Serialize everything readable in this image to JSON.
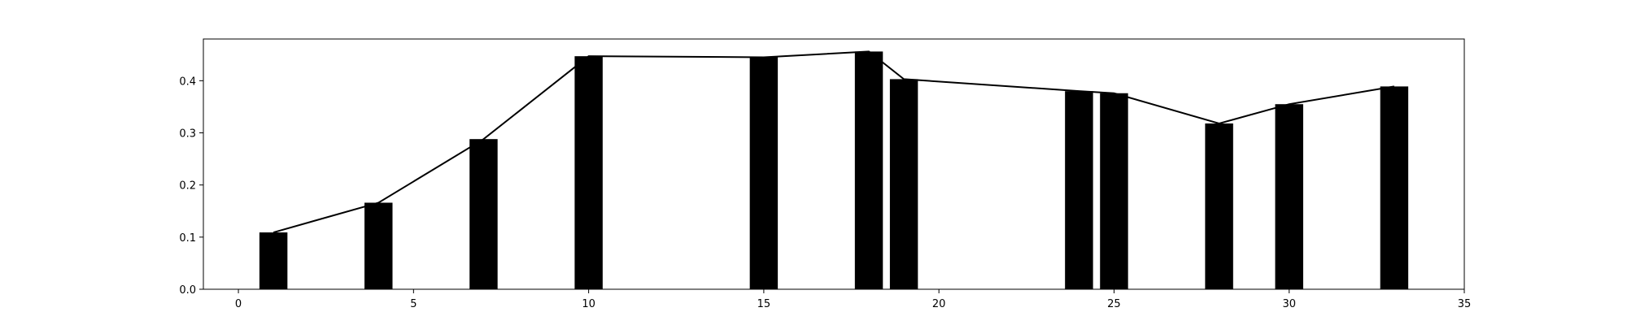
{
  "chart_data": {
    "type": "bar",
    "x": [
      1,
      4,
      7,
      10,
      15,
      18,
      19,
      24,
      25,
      28,
      30,
      33
    ],
    "values": [
      0.109,
      0.166,
      0.288,
      0.447,
      0.445,
      0.456,
      0.403,
      0.38,
      0.376,
      0.318,
      0.355,
      0.389
    ],
    "bar_width": 0.8,
    "line_overlay": true,
    "title": "",
    "xlabel": "",
    "ylabel": "",
    "xlim": [
      -1,
      35
    ],
    "ylim": [
      0,
      0.48
    ],
    "x_ticks": [
      0,
      5,
      10,
      15,
      20,
      25,
      30,
      35
    ],
    "x_tick_labels": [
      "0",
      "5",
      "10",
      "15",
      "20",
      "25",
      "30",
      "35"
    ],
    "y_ticks": [
      0.0,
      0.1,
      0.2,
      0.3,
      0.4
    ],
    "y_tick_labels": [
      "0.0",
      "0.1",
      "0.2",
      "0.3",
      "0.4"
    ],
    "grid": false,
    "legend": "none",
    "colors": {
      "bars": "#000000",
      "line": "#000000",
      "axes": "#000000",
      "background": "#ffffff"
    }
  }
}
